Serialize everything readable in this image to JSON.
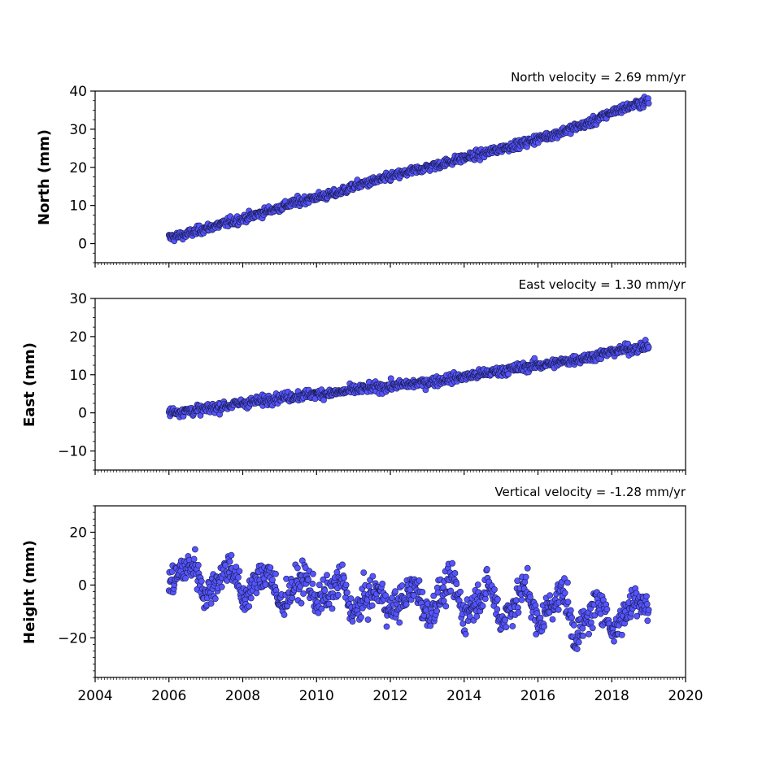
{
  "chart_data": [
    {
      "type": "scatter",
      "title": "North velocity = 2.69 mm/yr",
      "ylabel": "North (mm)",
      "xlabel": "",
      "xlim": [
        2004,
        2020
      ],
      "ylim": [
        -5,
        40
      ],
      "yticks": [
        0,
        10,
        20,
        30,
        40
      ],
      "grid": false,
      "marker_color": "#5555ff",
      "marker_edge": "#1a1a4d",
      "series": [
        {
          "x": [
            2006.0,
            2006.5,
            2007.0,
            2007.5,
            2008.0,
            2008.5,
            2009.0,
            2009.5,
            2010.0,
            2010.5,
            2011.0,
            2011.5,
            2012.0,
            2012.5,
            2013.0,
            2013.5,
            2014.0,
            2014.5,
            2015.0,
            2015.5,
            2016.0,
            2016.5,
            2017.0,
            2017.5,
            2018.0,
            2018.5,
            2019.0
          ],
          "y": [
            1.5,
            2.5,
            4.0,
            5.3,
            6.5,
            8.0,
            9.5,
            11.0,
            12.2,
            13.0,
            15.0,
            16.2,
            17.5,
            18.8,
            20.0,
            21.2,
            22.5,
            23.5,
            25.0,
            26.0,
            27.5,
            28.8,
            30.5,
            32.0,
            34.5,
            36.0,
            37.5
          ]
        }
      ]
    },
    {
      "type": "scatter",
      "title": "East velocity = 1.30 mm/yr",
      "ylabel": "East (mm)",
      "xlabel": "",
      "xlim": [
        2004,
        2020
      ],
      "ylim": [
        -15,
        30
      ],
      "yticks": [
        -10,
        0,
        10,
        20,
        30
      ],
      "grid": false,
      "marker_color": "#5555ff",
      "marker_edge": "#1a1a4d",
      "series": [
        {
          "x": [
            2006.0,
            2006.5,
            2007.0,
            2007.5,
            2008.0,
            2008.5,
            2009.0,
            2009.5,
            2010.0,
            2010.5,
            2011.0,
            2011.5,
            2012.0,
            2012.5,
            2013.0,
            2013.5,
            2014.0,
            2014.5,
            2015.0,
            2015.5,
            2016.0,
            2016.5,
            2017.0,
            2017.5,
            2018.0,
            2018.5,
            2019.0
          ],
          "y": [
            0.2,
            0.5,
            1.0,
            1.8,
            2.5,
            3.2,
            4.0,
            4.5,
            5.0,
            5.2,
            6.0,
            6.5,
            7.0,
            7.5,
            8.0,
            8.8,
            9.5,
            10.2,
            11.0,
            11.8,
            12.5,
            13.0,
            14.0,
            14.8,
            16.0,
            16.8,
            17.5
          ]
        }
      ]
    },
    {
      "type": "scatter",
      "title": "Vertical velocity = -1.28 mm/yr",
      "ylabel": "Height (mm)",
      "xlabel": "",
      "xlim": [
        2004,
        2020
      ],
      "ylim": [
        -35,
        30
      ],
      "yticks": [
        -20,
        0,
        20
      ],
      "xticks": [
        2004,
        2006,
        2008,
        2010,
        2012,
        2014,
        2016,
        2018,
        2020
      ],
      "grid": false,
      "marker_color": "#5555ff",
      "marker_edge": "#1a1a4d",
      "series": [
        {
          "x": [
            2006.0,
            2006.3,
            2006.7,
            2007.0,
            2007.3,
            2007.7,
            2008.0,
            2008.3,
            2008.7,
            2009.0,
            2009.3,
            2009.7,
            2010.0,
            2010.3,
            2010.7,
            2011.0,
            2011.3,
            2011.7,
            2012.0,
            2012.3,
            2012.7,
            2013.0,
            2013.3,
            2013.7,
            2014.0,
            2014.3,
            2014.7,
            2015.0,
            2015.3,
            2015.7,
            2016.0,
            2016.3,
            2016.7,
            2017.0,
            2017.3,
            2017.7,
            2018.0,
            2018.3,
            2018.7,
            2019.0
          ],
          "y": [
            0,
            5,
            8,
            -5,
            2,
            8,
            -6,
            0,
            6,
            -8,
            -2,
            3,
            -6,
            -4,
            2,
            -12,
            -5,
            -2,
            -10,
            -6,
            0,
            -12,
            -5,
            2,
            -12,
            -6,
            0,
            -14,
            -8,
            0,
            -16,
            -8,
            -2,
            -20,
            -14,
            -5,
            -18,
            -12,
            -4,
            -10
          ]
        }
      ]
    }
  ]
}
